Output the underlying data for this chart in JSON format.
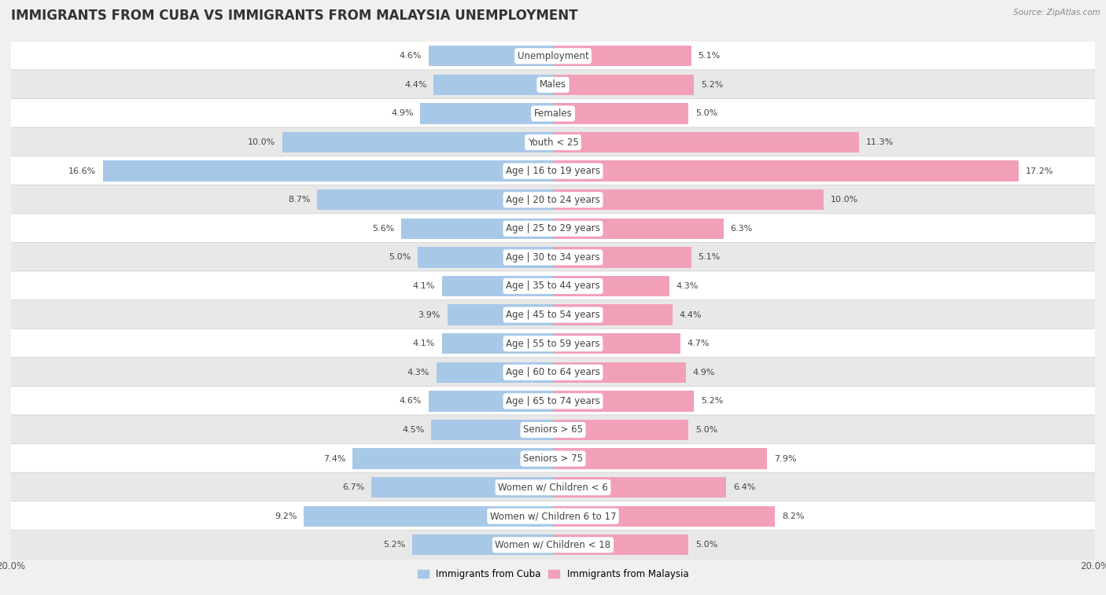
{
  "title": "IMMIGRANTS FROM CUBA VS IMMIGRANTS FROM MALAYSIA UNEMPLOYMENT",
  "source": "Source: ZipAtlas.com",
  "categories": [
    "Unemployment",
    "Males",
    "Females",
    "Youth < 25",
    "Age | 16 to 19 years",
    "Age | 20 to 24 years",
    "Age | 25 to 29 years",
    "Age | 30 to 34 years",
    "Age | 35 to 44 years",
    "Age | 45 to 54 years",
    "Age | 55 to 59 years",
    "Age | 60 to 64 years",
    "Age | 65 to 74 years",
    "Seniors > 65",
    "Seniors > 75",
    "Women w/ Children < 6",
    "Women w/ Children 6 to 17",
    "Women w/ Children < 18"
  ],
  "cuba_values": [
    4.6,
    4.4,
    4.9,
    10.0,
    16.6,
    8.7,
    5.6,
    5.0,
    4.1,
    3.9,
    4.1,
    4.3,
    4.6,
    4.5,
    7.4,
    6.7,
    9.2,
    5.2
  ],
  "malaysia_values": [
    5.1,
    5.2,
    5.0,
    11.3,
    17.2,
    10.0,
    6.3,
    5.1,
    4.3,
    4.4,
    4.7,
    4.9,
    5.2,
    5.0,
    7.9,
    6.4,
    8.2,
    5.0
  ],
  "cuba_color": "#a8c8e8",
  "malaysia_color": "#f2a0b8",
  "bar_height": 0.72,
  "xlim": 20.0,
  "background_color": "#f0f0f0",
  "row_color_odd": "#ffffff",
  "row_color_even": "#e8e8e8",
  "legend_cuba": "Immigrants from Cuba",
  "legend_malaysia": "Immigrants from Malaysia",
  "title_fontsize": 12,
  "label_fontsize": 8.5,
  "value_fontsize": 8.0,
  "axis_label_fontsize": 8.5
}
